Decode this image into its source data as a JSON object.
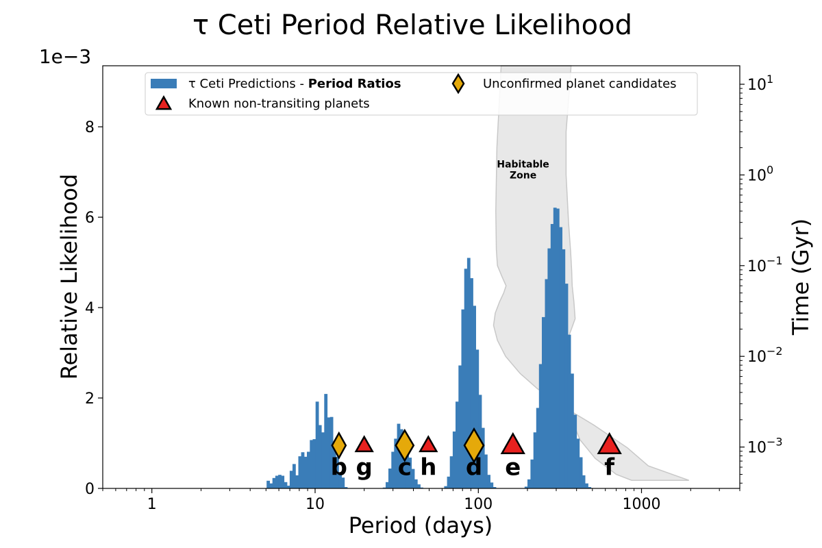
{
  "chart_data": {
    "type": "bar",
    "title": "τ Ceti Period Relative Likelihood",
    "xlabel": "Period (days)",
    "ylabel": "Relative Likelihood",
    "y2label": "Time (Gyr)",
    "xscale": "log",
    "xlim": [
      0.5,
      4000
    ],
    "ylim": [
      0,
      0.00935
    ],
    "y_offset_text": "1e−3",
    "x_ticks": [
      {
        "value": 1,
        "label": "1"
      },
      {
        "value": 10,
        "label": "10"
      },
      {
        "value": 100,
        "label": "100"
      },
      {
        "value": 1000,
        "label": "1000"
      }
    ],
    "y_ticks": [
      {
        "value": 0,
        "label": "0"
      },
      {
        "value": 0.002,
        "label": "2"
      },
      {
        "value": 0.004,
        "label": "4"
      },
      {
        "value": 0.006,
        "label": "6"
      },
      {
        "value": 0.008,
        "label": "8"
      }
    ],
    "y2_scale": "log",
    "y2_lim": [
      0.00035,
      16
    ],
    "y2_ticks": [
      {
        "value": 0.001,
        "base": "10",
        "exp": "−3"
      },
      {
        "value": 0.01,
        "base": "10",
        "exp": "−2"
      },
      {
        "value": 0.1,
        "base": "10",
        "exp": "−1"
      },
      {
        "value": 1,
        "base": "10",
        "exp": "0"
      },
      {
        "value": 10,
        "base": "10",
        "exp": "1"
      }
    ],
    "histogram": {
      "name": "τ Ceti Predictions - Period Ratios",
      "name_prefix": "τ Ceti Predictions - ",
      "name_bold": "Period Ratios",
      "color": "#3a7db8",
      "log_bin_width": 0.0175,
      "bins": [
        [
          5.15,
          0.00017
        ],
        [
          5.37,
          0.00011
        ],
        [
          5.59,
          0.00023
        ],
        [
          5.82,
          0.00028
        ],
        [
          6.06,
          0.0003
        ],
        [
          6.31,
          0.00028
        ],
        [
          6.58,
          0.00014
        ],
        [
          6.85,
          6e-05
        ],
        [
          7.13,
          0.00039
        ],
        [
          7.42,
          0.00054
        ],
        [
          7.73,
          0.00029
        ],
        [
          8.05,
          0.00071
        ],
        [
          8.38,
          0.0008
        ],
        [
          8.73,
          0.0007
        ],
        [
          9.09,
          0.00081
        ],
        [
          9.47,
          0.00107
        ],
        [
          9.86,
          0.00109
        ],
        [
          10.27,
          0.00192
        ],
        [
          10.69,
          0.0014
        ],
        [
          11.14,
          0.00124
        ],
        [
          11.6,
          0.00209
        ],
        [
          12.08,
          0.00157
        ],
        [
          12.58,
          0.00158
        ],
        [
          13.1,
          0.00101
        ],
        [
          13.64,
          0.0007
        ],
        [
          14.2,
          0.00034
        ],
        [
          14.79,
          0.00024
        ],
        [
          15.4,
          3e-05
        ],
        [
          26.5,
          2e-05
        ],
        [
          27.6,
          0.00014
        ],
        [
          28.7,
          0.00044
        ],
        [
          29.9,
          0.00081
        ],
        [
          31.1,
          0.0011
        ],
        [
          32.4,
          0.00143
        ],
        [
          33.8,
          0.00131
        ],
        [
          35.2,
          0.00119
        ],
        [
          36.6,
          0.00094
        ],
        [
          38.1,
          0.00068
        ],
        [
          39.7,
          0.00043
        ],
        [
          41.4,
          0.0002
        ],
        [
          43.1,
          9e-05
        ],
        [
          44.8,
          2e-05
        ],
        [
          63.0,
          5e-05
        ],
        [
          65.6,
          0.00026
        ],
        [
          68.3,
          0.00071
        ],
        [
          71.1,
          0.00126
        ],
        [
          74.0,
          0.00192
        ],
        [
          77.1,
          0.00272
        ],
        [
          80.3,
          0.00396
        ],
        [
          83.6,
          0.00486
        ],
        [
          87.1,
          0.0051
        ],
        [
          90.7,
          0.00465
        ],
        [
          94.4,
          0.00404
        ],
        [
          98.3,
          0.00307
        ],
        [
          102.4,
          0.00207
        ],
        [
          106.6,
          0.00134
        ],
        [
          111.0,
          0.00075
        ],
        [
          115.6,
          0.0003
        ],
        [
          120.4,
          0.00013
        ],
        [
          125.4,
          3e-05
        ],
        [
          196,
          4e-05
        ],
        [
          204,
          0.0002
        ],
        [
          213,
          0.00064
        ],
        [
          222,
          0.00124
        ],
        [
          231,
          0.00178
        ],
        [
          240,
          0.00275
        ],
        [
          250,
          0.00379
        ],
        [
          261,
          0.00463
        ],
        [
          271,
          0.00531
        ],
        [
          283,
          0.00585
        ],
        [
          294,
          0.00621
        ],
        [
          306,
          0.00619
        ],
        [
          319,
          0.00578
        ],
        [
          332,
          0.00529
        ],
        [
          346,
          0.00453
        ],
        [
          360,
          0.0034
        ],
        [
          375,
          0.00254
        ],
        [
          391,
          0.00163
        ],
        [
          407,
          0.0011
        ],
        [
          424,
          0.00069
        ],
        [
          441,
          0.00029
        ],
        [
          460,
          0.00011
        ],
        [
          479,
          3e-05
        ]
      ]
    },
    "habitable_zone": {
      "label_line1": "Habitable",
      "label_line2": "Zone",
      "label_at": [
        188,
        1.0
      ],
      "fill_color": "#e8e8e8",
      "edge_color": "#c8c8c8",
      "polygon": [
        [
          138,
          16
        ],
        [
          130,
          2
        ],
        [
          128,
          0.4
        ],
        [
          129,
          0.15
        ],
        [
          131,
          0.1
        ],
        [
          140,
          0.075
        ],
        [
          148,
          0.06
        ],
        [
          143,
          0.05
        ],
        [
          135,
          0.04
        ],
        [
          127,
          0.03
        ],
        [
          124,
          0.022
        ],
        [
          131,
          0.015
        ],
        [
          147,
          0.01
        ],
        [
          180,
          0.0065
        ],
        [
          230,
          0.0044
        ],
        [
          320,
          0.0029
        ],
        [
          510,
          0.00175
        ],
        [
          820,
          0.00098
        ],
        [
          1100,
          0.00062
        ],
        [
          1950,
          0.00043
        ],
        [
          870,
          0.00043
        ],
        [
          700,
          0.0005
        ],
        [
          520,
          0.00075
        ],
        [
          420,
          0.0012
        ],
        [
          365,
          0.0022
        ],
        [
          340,
          0.004
        ],
        [
          333,
          0.0085
        ],
        [
          345,
          0.014
        ],
        [
          372,
          0.02
        ],
        [
          392,
          0.026
        ],
        [
          385,
          0.04
        ],
        [
          376,
          0.06
        ],
        [
          373,
          0.09
        ],
        [
          368,
          0.14
        ],
        [
          357,
          0.3
        ],
        [
          345,
          1.0
        ],
        [
          345,
          3.0
        ],
        [
          360,
          8.0
        ],
        [
          370,
          16
        ]
      ]
    },
    "markers": [
      {
        "label": "b",
        "period": 14.0,
        "type": "candidate",
        "size": "small"
      },
      {
        "label": "g",
        "period": 20.0,
        "type": "known",
        "size": "small"
      },
      {
        "label": "c",
        "period": 35.4,
        "type": "candidate",
        "size": "medium"
      },
      {
        "label": "h",
        "period": 49.4,
        "type": "known",
        "size": "small"
      },
      {
        "label": "d",
        "period": 94.1,
        "type": "candidate",
        "size": "large"
      },
      {
        "label": "e",
        "period": 162.9,
        "type": "known",
        "size": "large"
      },
      {
        "label": "f",
        "period": 636.1,
        "type": "known",
        "size": "large"
      }
    ],
    "marker_y": 0.00095,
    "marker_label_y": 0.00048,
    "marker_colors": {
      "candidate": "#e5a90a",
      "known": "#e8211f"
    },
    "legend": {
      "position": "top",
      "entries": [
        {
          "kind": "bar",
          "text_prefix": "τ Ceti Predictions - ",
          "text_bold": "Period Ratios"
        },
        {
          "kind": "known",
          "text": "Known non-transiting planets"
        },
        {
          "kind": "candidate",
          "text": "Unconfirmed planet candidates"
        }
      ]
    }
  }
}
